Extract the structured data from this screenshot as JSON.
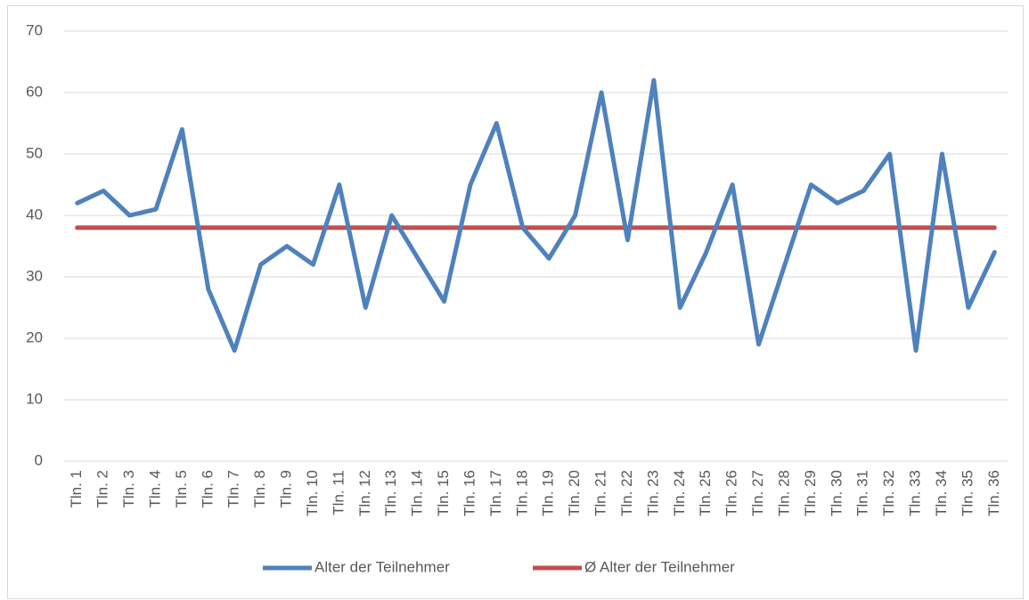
{
  "chart_data": {
    "type": "line",
    "categories": [
      "Tln. 1",
      "Tln. 2",
      "Tln. 3",
      "Tln. 4",
      "Tln. 5",
      "Tln. 6",
      "Tln. 7",
      "Tln. 8",
      "Tln. 9",
      "Tln. 10",
      "Tln. 11",
      "Tln. 12",
      "Tln. 13",
      "Tln. 14",
      "Tln. 15",
      "Tln. 16",
      "Tln. 17",
      "Tln. 18",
      "Tln. 19",
      "Tln. 20",
      "Tln. 21",
      "Tln. 22",
      "Tln. 23",
      "Tln. 24",
      "Tln. 25",
      "Tln. 26",
      "Tln. 27",
      "Tln. 28",
      "Tln. 29",
      "Tln. 30",
      "Tln. 31",
      "Tln. 32",
      "Tln. 33",
      "Tln. 34",
      "Tln. 35",
      "Tln. 36"
    ],
    "series": [
      {
        "name": "Alter der Teilnehmer",
        "color": "#4f81bd",
        "values": [
          42,
          44,
          40,
          41,
          54,
          28,
          18,
          32,
          35,
          32,
          45,
          25,
          40,
          33,
          26,
          45,
          55,
          38,
          33,
          40,
          60,
          36,
          62,
          25,
          34,
          45,
          19,
          32,
          45,
          42,
          44,
          50,
          18,
          50,
          25,
          34
        ]
      },
      {
        "name": "Ø Alter der Teilnehmer",
        "color": "#c0504d",
        "values": [
          38,
          38,
          38,
          38,
          38,
          38,
          38,
          38,
          38,
          38,
          38,
          38,
          38,
          38,
          38,
          38,
          38,
          38,
          38,
          38,
          38,
          38,
          38,
          38,
          38,
          38,
          38,
          38,
          38,
          38,
          38,
          38,
          38,
          38,
          38,
          38
        ]
      }
    ],
    "ylim": [
      0,
      70
    ],
    "yticks": [
      0,
      10,
      20,
      30,
      40,
      50,
      60,
      70
    ],
    "grid": true,
    "legend": "bottom"
  }
}
